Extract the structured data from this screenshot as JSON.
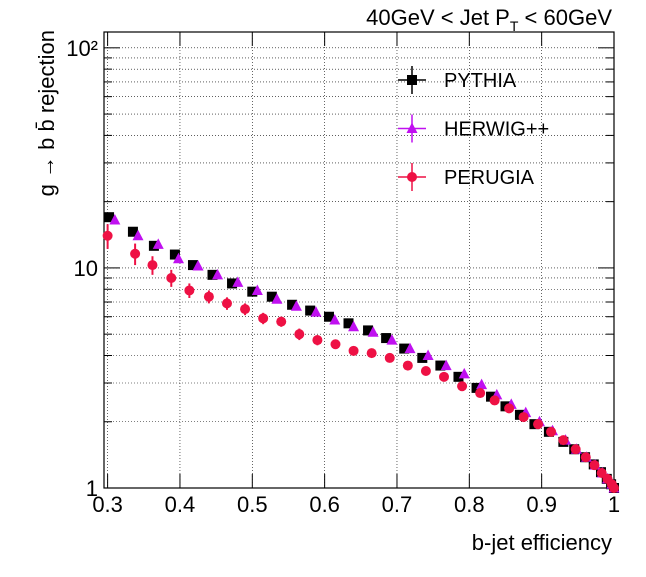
{
  "chart_data": {
    "type": "scatter",
    "title": {
      "text": "40GeV < Jet P",
      "sub": "T",
      "tail": " < 60GeV"
    },
    "x_label": "b-jet efficiency",
    "y_label": "g → b b̄ rejection",
    "log_y": true,
    "grid": true,
    "legend": "top-right",
    "xlim": [
      0.295,
      1
    ],
    "xticks": [
      0.3,
      0.4,
      0.5,
      0.6,
      0.7,
      0.8,
      0.9,
      1
    ],
    "ylim": [
      1,
      118
    ],
    "yticks": [
      1,
      10,
      {
        "value": 100,
        "label": "10²"
      }
    ],
    "yminorticks": [
      2,
      3,
      4,
      5,
      6,
      7,
      8,
      9,
      20,
      30,
      40,
      50,
      60,
      70,
      80,
      90
    ],
    "series": [
      {
        "name": "PYTHIA",
        "color": "#000000",
        "marker": "square",
        "x": [
          0.302,
          0.335,
          0.364,
          0.393,
          0.418,
          0.445,
          0.472,
          0.5,
          0.527,
          0.555,
          0.58,
          0.606,
          0.633,
          0.66,
          0.685,
          0.71,
          0.735,
          0.76,
          0.785,
          0.81,
          0.83,
          0.85,
          0.87,
          0.89,
          0.91,
          0.93,
          0.945,
          0.96,
          0.972,
          0.982,
          0.99,
          0.996,
          1.0
        ],
        "values": [
          17,
          14.6,
          12.6,
          11.5,
          10.3,
          9.3,
          8.5,
          7.8,
          7.4,
          6.8,
          6.4,
          6.0,
          5.6,
          5.2,
          4.8,
          4.3,
          3.9,
          3.6,
          3.2,
          2.85,
          2.6,
          2.35,
          2.15,
          1.95,
          1.8,
          1.62,
          1.5,
          1.38,
          1.28,
          1.18,
          1.1,
          1.04,
          1.0
        ]
      },
      {
        "name": "HERWIG++",
        "color": "#c010f0",
        "marker": "triangle",
        "x": [
          0.31,
          0.342,
          0.37,
          0.398,
          0.425,
          0.452,
          0.48,
          0.507,
          0.534,
          0.561,
          0.588,
          0.614,
          0.64,
          0.667,
          0.693,
          0.718,
          0.743,
          0.768,
          0.793,
          0.817,
          0.838,
          0.858,
          0.878,
          0.897,
          0.915,
          0.933,
          0.948,
          0.962,
          0.974,
          0.984,
          0.991,
          0.997,
          1.0
        ],
        "values": [
          16.5,
          14,
          12.8,
          11,
          10.2,
          9.3,
          8.6,
          7.9,
          7.2,
          6.7,
          6.3,
          5.8,
          5.4,
          5.1,
          4.7,
          4.3,
          4.0,
          3.6,
          3.3,
          2.95,
          2.65,
          2.4,
          2.2,
          2.0,
          1.82,
          1.65,
          1.5,
          1.38,
          1.27,
          1.17,
          1.1,
          1.04,
          1.0
        ]
      },
      {
        "name": "PERUGIA",
        "color": "#ee1144",
        "marker": "circle",
        "x": [
          0.3,
          0.338,
          0.362,
          0.388,
          0.413,
          0.44,
          0.465,
          0.49,
          0.515,
          0.54,
          0.565,
          0.59,
          0.615,
          0.64,
          0.665,
          0.69,
          0.715,
          0.74,
          0.765,
          0.79,
          0.815,
          0.835,
          0.855,
          0.875,
          0.895,
          0.913,
          0.93,
          0.947,
          0.961,
          0.973,
          0.983,
          0.991,
          0.997,
          1.0
        ],
        "values": [
          14,
          11.6,
          10.3,
          9,
          7.9,
          7.4,
          6.9,
          6.5,
          5.9,
          5.7,
          5.0,
          4.7,
          4.5,
          4.2,
          4.1,
          3.9,
          3.6,
          3.4,
          3.2,
          2.9,
          2.7,
          2.5,
          2.3,
          2.1,
          1.95,
          1.8,
          1.65,
          1.5,
          1.38,
          1.27,
          1.17,
          1.1,
          1.04,
          1.0
        ],
        "errors": [
          1.8,
          1.3,
          1.0,
          0.8,
          0.6,
          0.5,
          0.45,
          0.4,
          0.35,
          0.3,
          0.3,
          0.25,
          0.2,
          0.2,
          0.18,
          0.15,
          0.15,
          0.12,
          0.12,
          0.1,
          0.1,
          0.08,
          0.08,
          0.07,
          0.06,
          0.06,
          0.05,
          0.05,
          0.04,
          0.04,
          0.04,
          0.03,
          0.03,
          0.02
        ]
      }
    ]
  }
}
